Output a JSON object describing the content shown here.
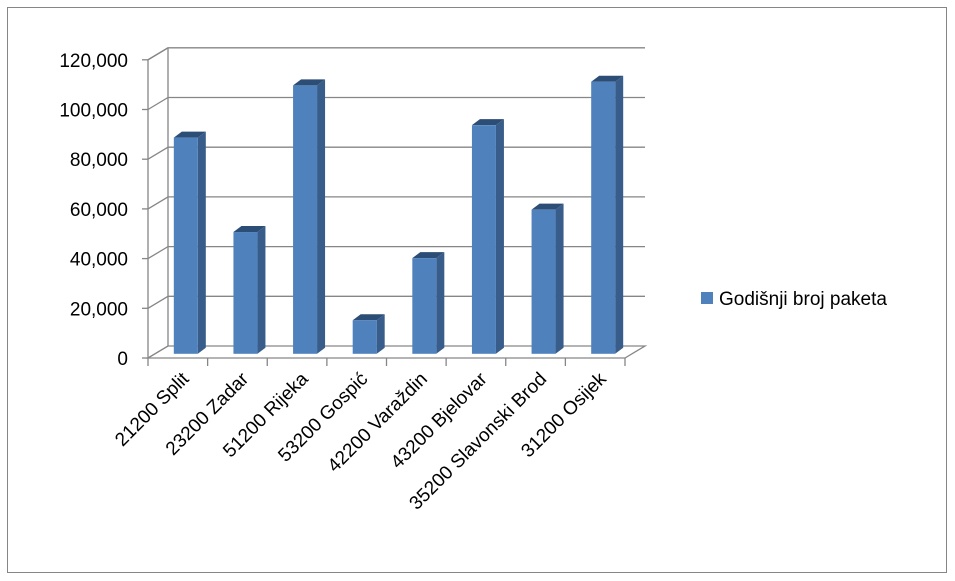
{
  "chart_data": {
    "type": "bar",
    "categories": [
      "21200 Split",
      "23200 Zadar",
      "51200 Rijeka",
      "53200 Gospić",
      "42200 Varaždin",
      "43200 Bjelovar",
      "35200 Slavonski Brod",
      "31200 Osijek"
    ],
    "series": [
      {
        "name": "Godišnji broj paketa",
        "values": [
          87000,
          49000,
          108000,
          13500,
          38500,
          92000,
          58000,
          109500
        ]
      }
    ],
    "yticks": [
      "0",
      "20,000",
      "40,000",
      "60,000",
      "80,000",
      "100,000",
      "120,000"
    ],
    "ylim": [
      0,
      120000
    ],
    "grid": true,
    "legend_position": "right",
    "style": "3d-column",
    "colors": {
      "bar_front": "#4F81BD",
      "bar_side": "#385D8A",
      "bar_top": "#2C4D75",
      "gridline": "#868686",
      "axis": "#868686"
    }
  }
}
